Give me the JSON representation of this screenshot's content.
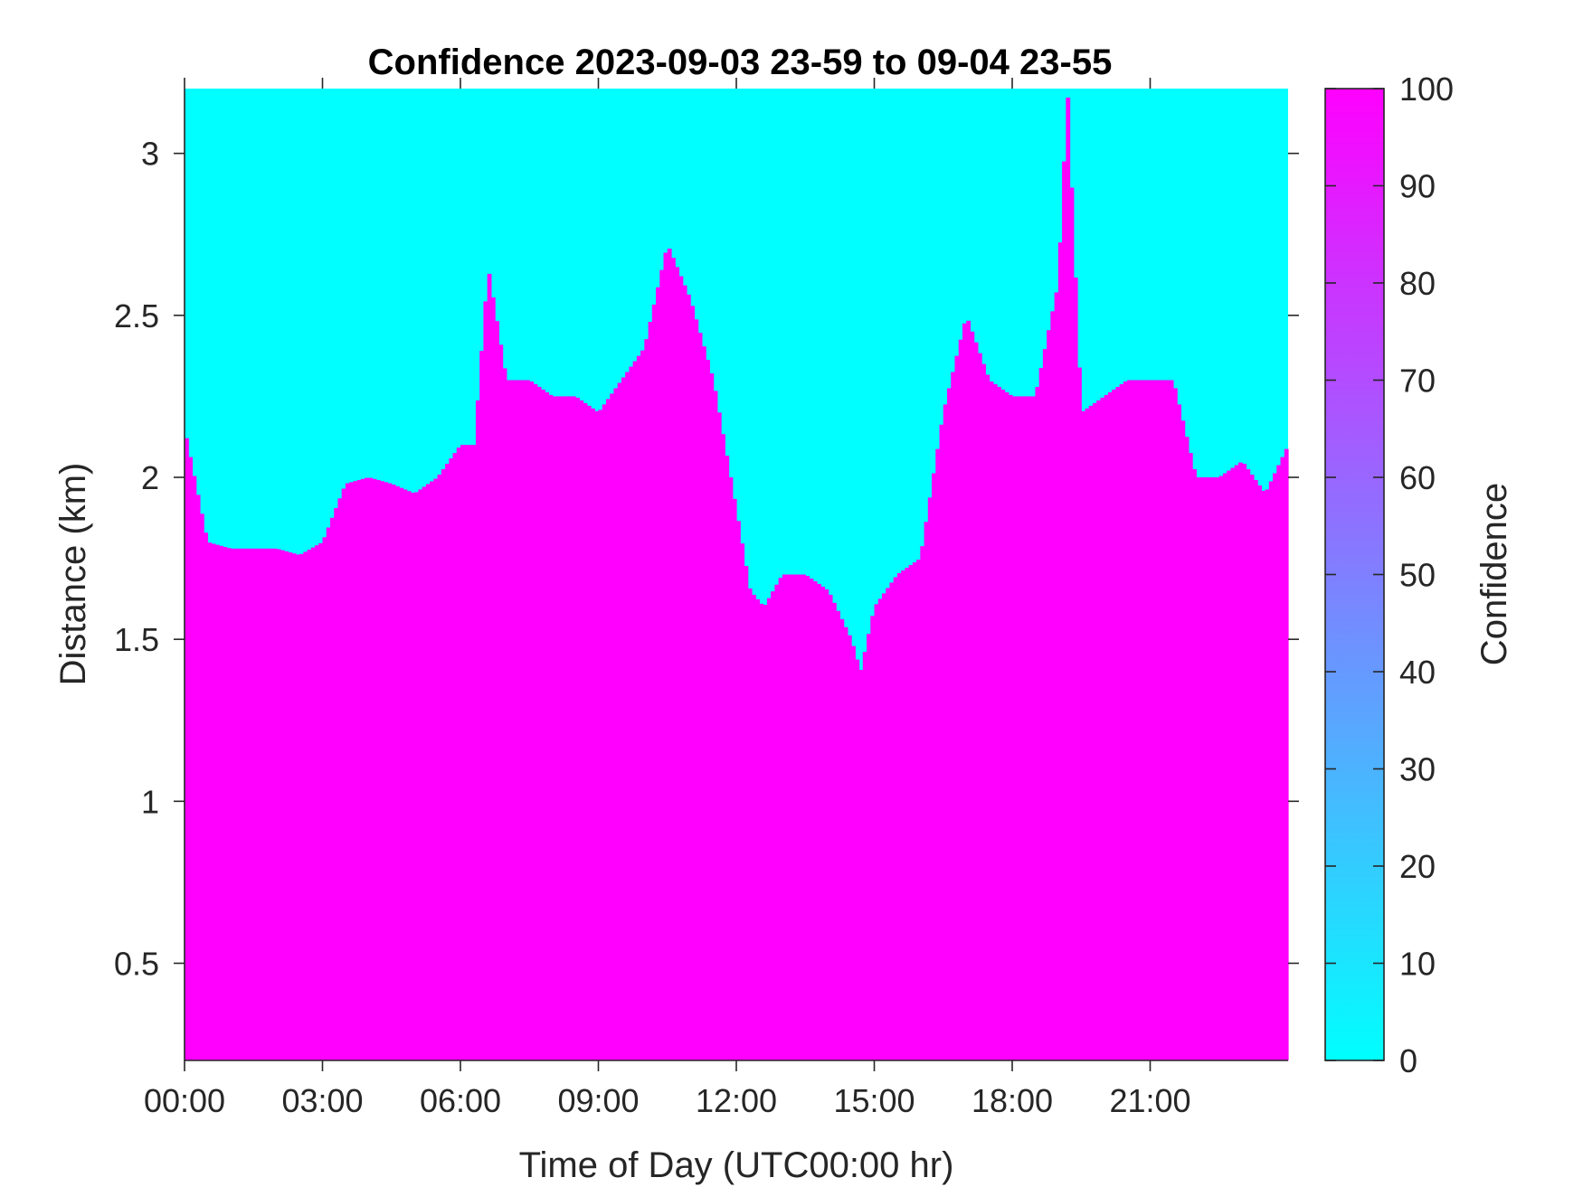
{
  "chart_data": {
    "type": "heatmap",
    "title": "Confidence 2023-09-03 23-59 to 09-04 23-55",
    "xlabel": "Time of Day (UTC00:00 hr)",
    "ylabel": "Distance (km)",
    "x_unit": "hours",
    "xlim": [
      0,
      24
    ],
    "ylim": [
      0.2,
      3.2
    ],
    "x_ticks": [
      0,
      3,
      6,
      9,
      12,
      15,
      18,
      21
    ],
    "x_tick_labels": [
      "00:00",
      "03:00",
      "06:00",
      "09:00",
      "12:00",
      "15:00",
      "18:00",
      "21:00"
    ],
    "y_ticks": [
      0.5,
      1,
      1.5,
      2,
      2.5,
      3
    ],
    "y_tick_labels": [
      "0.5",
      "1",
      "1.5",
      "2",
      "2.5",
      "3"
    ],
    "colorbar": {
      "label": "Confidence",
      "range": [
        0,
        100
      ],
      "ticks": [
        0,
        10,
        20,
        30,
        40,
        50,
        60,
        70,
        80,
        90,
        100
      ],
      "tick_labels": [
        "0",
        "10",
        "20",
        "30",
        "40",
        "50",
        "60",
        "70",
        "80",
        "90",
        "100"
      ],
      "color_low": "#00ffff",
      "color_high": "#ff00ff"
    },
    "grid": false,
    "high_confidence_top_km": {
      "x": [
        0,
        0.5,
        1,
        1.5,
        2,
        2.5,
        3,
        3.5,
        4,
        4.5,
        5,
        5.5,
        6,
        6.3,
        6.6,
        7,
        7.5,
        8,
        8.5,
        9,
        9.5,
        10,
        10.5,
        11,
        11.5,
        12,
        12.3,
        12.6,
        13,
        13.5,
        14,
        14.5,
        14.7,
        15,
        15.5,
        16,
        16.5,
        17,
        17.5,
        18,
        18.5,
        19,
        19.2,
        19.5,
        20,
        20.5,
        21,
        21.5,
        22,
        22.5,
        23,
        23.5,
        24
      ],
      "y": [
        2.15,
        1.8,
        1.78,
        1.78,
        1.78,
        1.76,
        1.8,
        1.98,
        2.0,
        1.98,
        1.95,
        2.0,
        2.1,
        2.1,
        2.65,
        2.3,
        2.3,
        2.25,
        2.25,
        2.2,
        2.3,
        2.4,
        2.72,
        2.55,
        2.3,
        1.9,
        1.65,
        1.6,
        1.7,
        1.7,
        1.65,
        1.5,
        1.4,
        1.6,
        1.7,
        1.75,
        2.2,
        2.5,
        2.3,
        2.25,
        2.25,
        2.6,
        3.2,
        2.2,
        2.25,
        2.3,
        2.3,
        2.3,
        2.0,
        2.0,
        2.05,
        1.95,
        2.1
      ]
    }
  }
}
